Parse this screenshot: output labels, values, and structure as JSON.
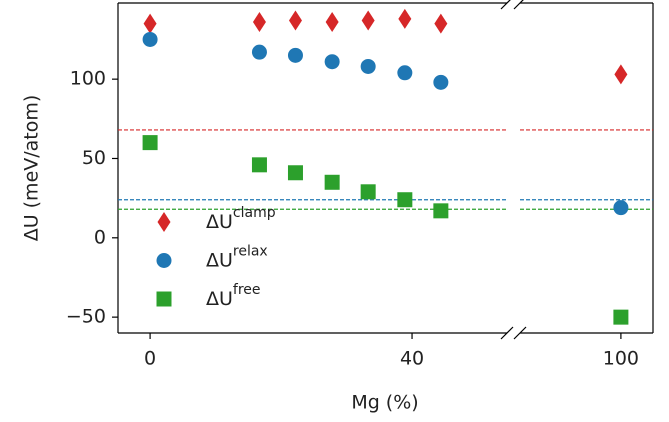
{
  "chart_data": {
    "type": "scatter",
    "x_label": "Mg (%)",
    "y_label": "ΔU (meV/atom)",
    "x": [
      0,
      16.7,
      22.2,
      27.8,
      33.3,
      38.9,
      44.4,
      100
    ],
    "xlim": [
      -4.9,
      54.5
    ],
    "xticks": [
      0,
      40
    ],
    "x2lim": [
      84.6,
      104.9
    ],
    "x2ticks": [
      100
    ],
    "ylim": [
      -60,
      148
    ],
    "yticks": [
      {
        "value": -50,
        "label": "−50"
      },
      0,
      50,
      100
    ],
    "series": [
      {
        "name": "ΔU",
        "name_sup": "clamp",
        "color": "#d62728",
        "marker": "diamond",
        "values": [
          135,
          136,
          137,
          136,
          137,
          138,
          135,
          103
        ]
      },
      {
        "name": "ΔU",
        "name_sup": "relax",
        "color": "#1f77b4",
        "marker": "circle",
        "values": [
          125,
          117,
          115,
          111,
          108,
          104,
          98,
          19
        ]
      },
      {
        "name": "ΔU",
        "name_sup": "free",
        "color": "#2ca02c",
        "marker": "square",
        "values": [
          60,
          46,
          41,
          35,
          29,
          24,
          17,
          -50
        ]
      }
    ],
    "hlines": [
      {
        "value": 68,
        "color": "#d62728"
      },
      {
        "value": 24,
        "color": "#1f77b4"
      },
      {
        "value": 18,
        "color": "#2ca02c"
      }
    ],
    "legend": "lower left"
  }
}
